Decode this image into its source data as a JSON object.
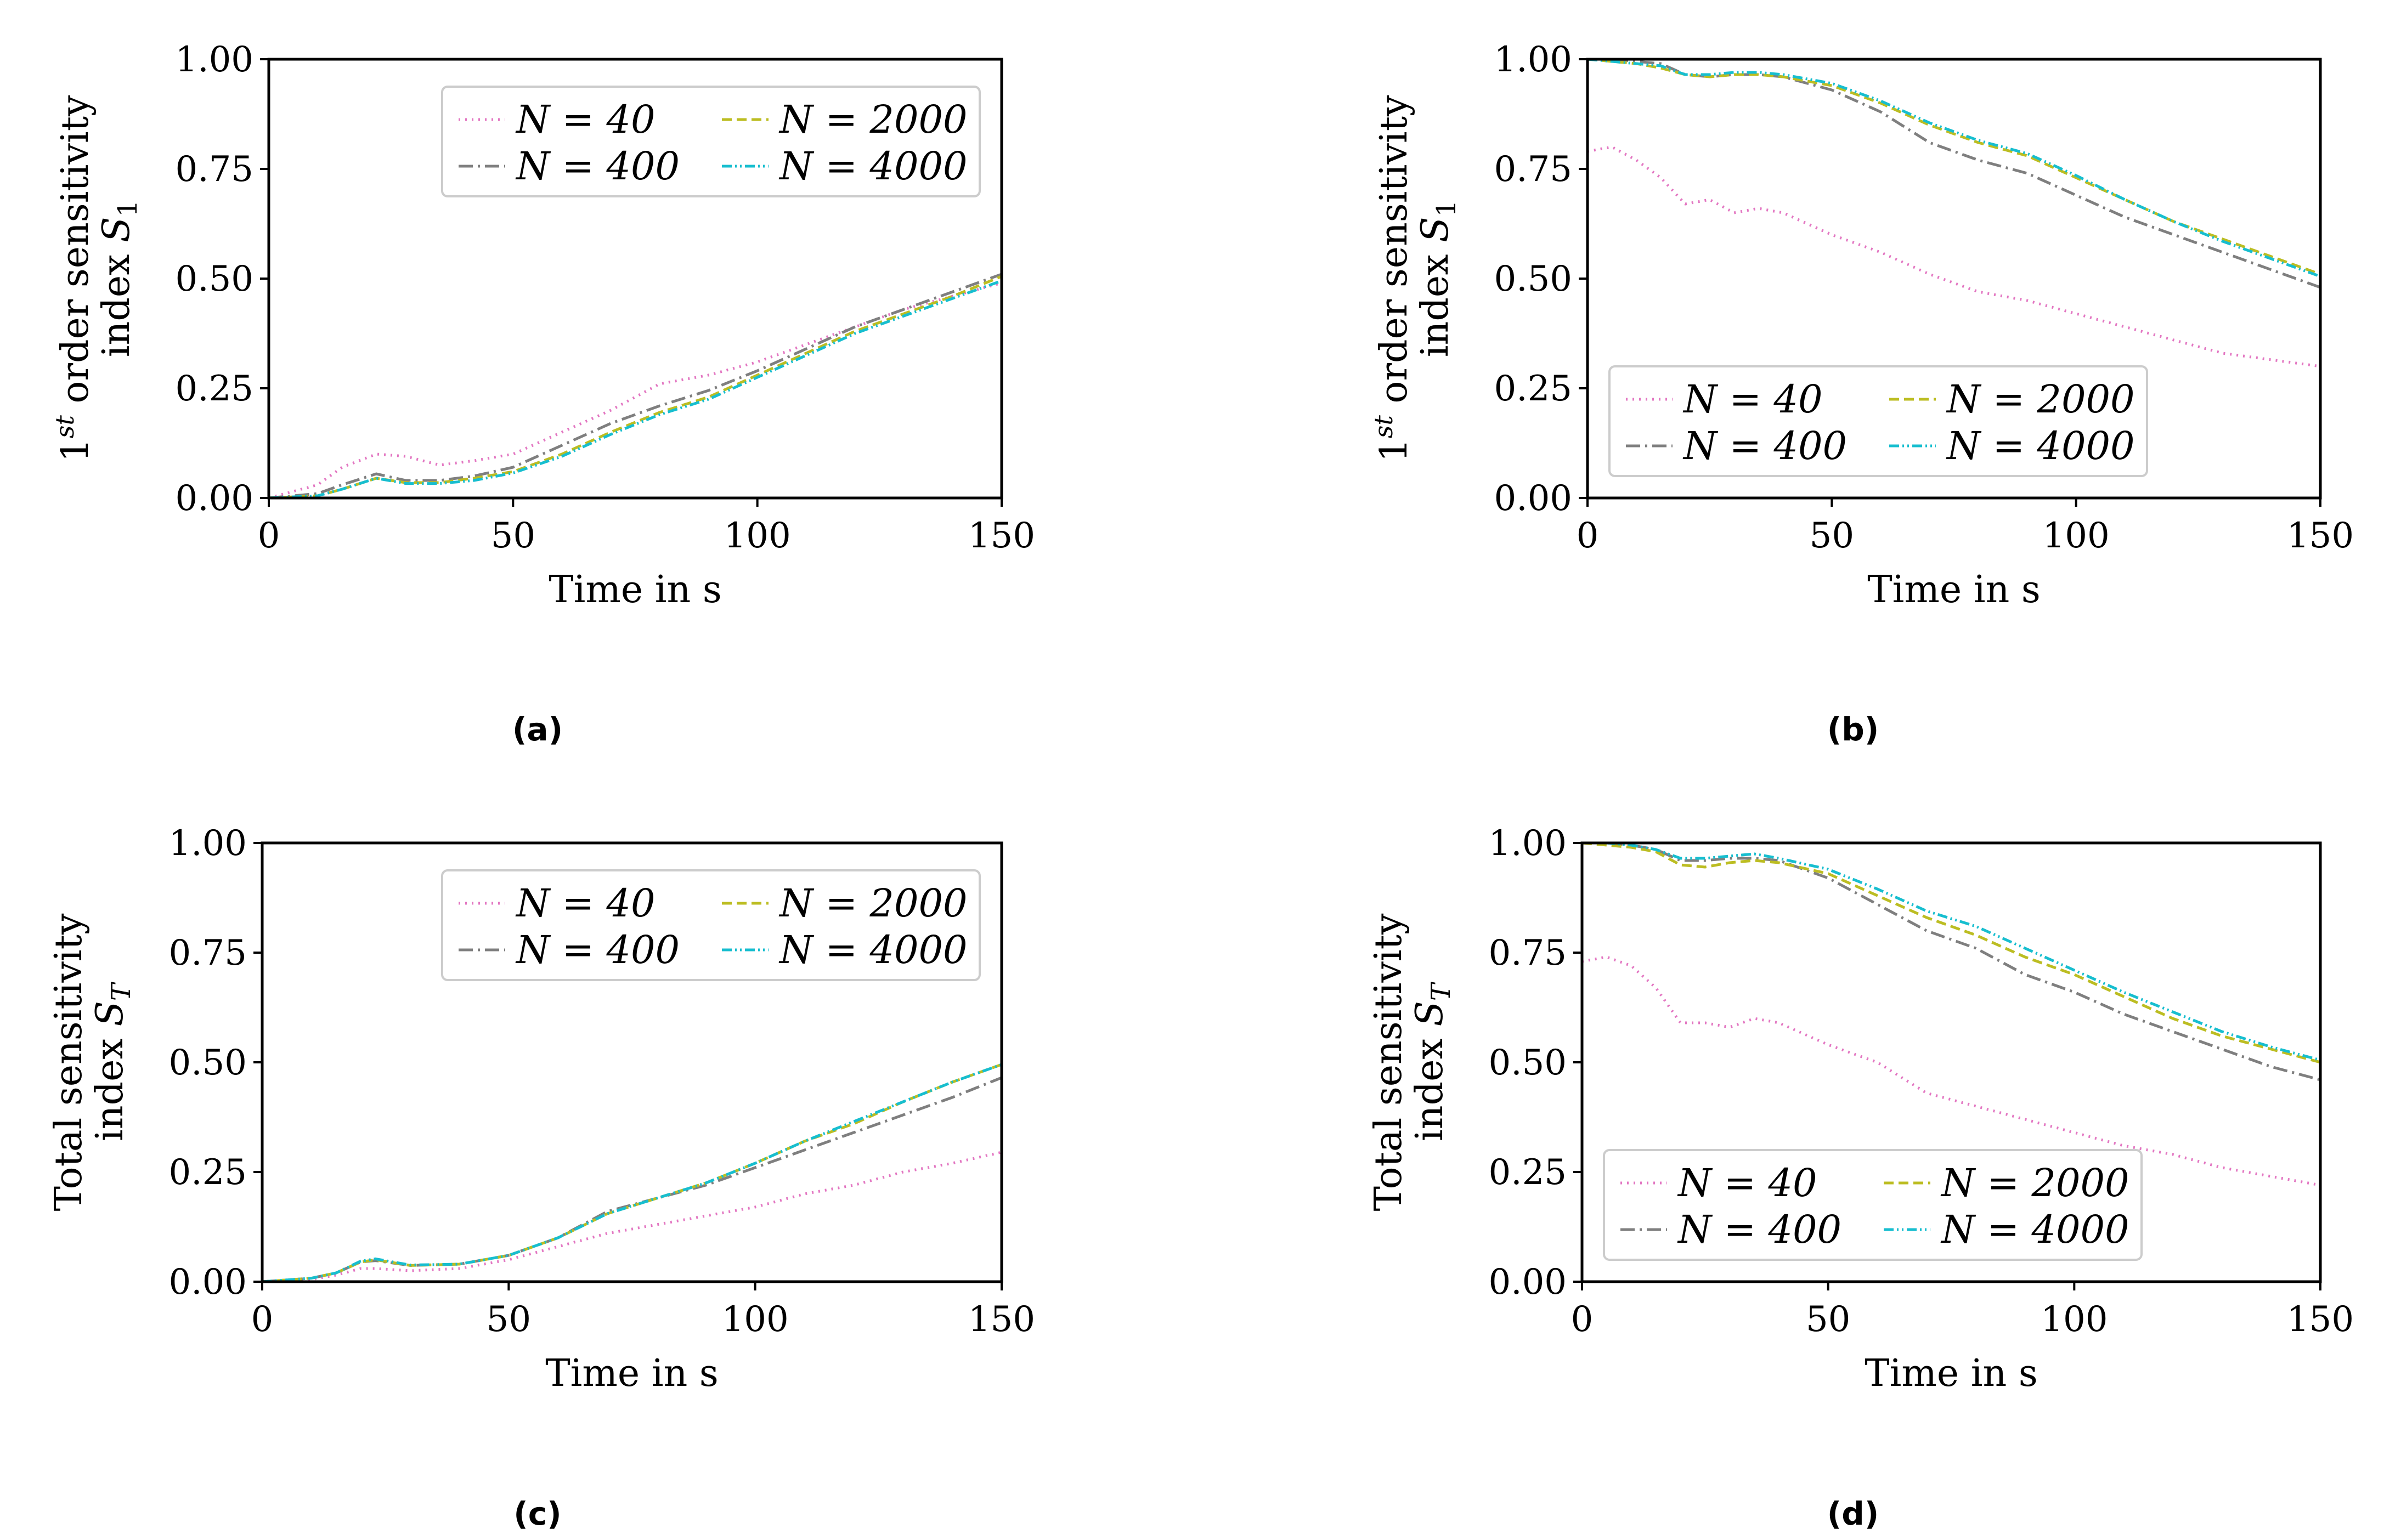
{
  "figure": {
    "panels": [
      "a",
      "b",
      "c",
      "d"
    ]
  },
  "chart_data": [
    {
      "id": "a",
      "caption": "(a)",
      "type": "line",
      "ylabel_line1": "1st order sensitivity",
      "ylabel_line2": "index S1",
      "xlabel": "Time in s",
      "xlim": [
        0,
        150
      ],
      "ylim": [
        0,
        1
      ],
      "xticks": [
        0,
        50,
        100,
        150
      ],
      "yticks": [
        0.0,
        0.25,
        0.5,
        0.75,
        1.0
      ],
      "xtick_labels": [
        "0",
        "50",
        "100",
        "150"
      ],
      "ytick_labels": [
        "0.00",
        "0.25",
        "0.50",
        "0.75",
        "1.00"
      ],
      "legend_position": "top-right",
      "legend": [
        "N = 40",
        "N = 400",
        "N = 2000",
        "N = 4000"
      ],
      "x": [
        0,
        10,
        15,
        22,
        28,
        35,
        42,
        50,
        60,
        70,
        80,
        90,
        100,
        110,
        120,
        130,
        140,
        150
      ],
      "series": [
        {
          "name": "N = 40",
          "color": "#e377c2",
          "dash": "3,9",
          "values": [
            0.0,
            0.03,
            0.07,
            0.1,
            0.095,
            0.075,
            0.085,
            0.1,
            0.15,
            0.2,
            0.26,
            0.28,
            0.31,
            0.35,
            0.39,
            0.43,
            0.46,
            0.49
          ]
        },
        {
          "name": "N = 400",
          "color": "#7f7f7f",
          "dash": "26,9,4,9",
          "values": [
            0.0,
            0.01,
            0.03,
            0.055,
            0.04,
            0.04,
            0.05,
            0.07,
            0.12,
            0.17,
            0.21,
            0.245,
            0.29,
            0.34,
            0.39,
            0.43,
            0.47,
            0.51
          ]
        },
        {
          "name": "N = 2000",
          "color": "#bcbd22",
          "dash": "18,9",
          "values": [
            0.0,
            0.005,
            0.02,
            0.045,
            0.035,
            0.035,
            0.045,
            0.06,
            0.1,
            0.15,
            0.195,
            0.23,
            0.28,
            0.33,
            0.38,
            0.42,
            0.46,
            0.505
          ]
        },
        {
          "name": "N = 4000",
          "color": "#17becf",
          "dash": "18,6,3,6,3,6",
          "values": [
            0.0,
            0.005,
            0.02,
            0.045,
            0.033,
            0.033,
            0.04,
            0.057,
            0.095,
            0.145,
            0.19,
            0.225,
            0.275,
            0.325,
            0.375,
            0.415,
            0.455,
            0.495
          ]
        }
      ]
    },
    {
      "id": "b",
      "caption": "(b)",
      "type": "line",
      "ylabel_line1": "1st order sensitivity",
      "ylabel_line2": "index S1",
      "xlabel": "Time in s",
      "xlim": [
        0,
        150
      ],
      "ylim": [
        0,
        1
      ],
      "xticks": [
        0,
        50,
        100,
        150
      ],
      "yticks": [
        0.0,
        0.25,
        0.5,
        0.75,
        1.0
      ],
      "xtick_labels": [
        "0",
        "50",
        "100",
        "150"
      ],
      "ytick_labels": [
        "0.00",
        "0.25",
        "0.50",
        "0.75",
        "1.00"
      ],
      "legend_position": "bottom-left",
      "legend": [
        "N = 40",
        "N = 400",
        "N = 2000",
        "N = 4000"
      ],
      "x": [
        0,
        5,
        10,
        15,
        20,
        25,
        30,
        35,
        40,
        50,
        60,
        70,
        80,
        90,
        100,
        110,
        120,
        130,
        140,
        150
      ],
      "series": [
        {
          "name": "N = 40",
          "color": "#e377c2",
          "dash": "3,9",
          "values": [
            0.79,
            0.8,
            0.77,
            0.73,
            0.67,
            0.68,
            0.65,
            0.66,
            0.65,
            0.6,
            0.56,
            0.51,
            0.47,
            0.45,
            0.42,
            0.39,
            0.36,
            0.33,
            0.315,
            0.3
          ]
        },
        {
          "name": "N = 400",
          "color": "#7f7f7f",
          "dash": "26,9,4,9",
          "values": [
            1.0,
            1.0,
            0.995,
            0.99,
            0.965,
            0.96,
            0.965,
            0.965,
            0.96,
            0.93,
            0.88,
            0.81,
            0.77,
            0.74,
            0.69,
            0.64,
            0.6,
            0.56,
            0.52,
            0.48
          ]
        },
        {
          "name": "N = 2000",
          "color": "#bcbd22",
          "dash": "18,9",
          "values": [
            1.0,
            0.995,
            0.99,
            0.98,
            0.965,
            0.96,
            0.965,
            0.965,
            0.96,
            0.94,
            0.9,
            0.85,
            0.81,
            0.78,
            0.73,
            0.68,
            0.63,
            0.59,
            0.55,
            0.51
          ]
        },
        {
          "name": "N = 4000",
          "color": "#17becf",
          "dash": "18,6,3,6,3,6",
          "values": [
            1.0,
            0.995,
            0.99,
            0.985,
            0.965,
            0.965,
            0.97,
            0.97,
            0.965,
            0.945,
            0.905,
            0.855,
            0.815,
            0.785,
            0.735,
            0.68,
            0.63,
            0.585,
            0.545,
            0.505
          ]
        }
      ]
    },
    {
      "id": "c",
      "caption": "(c)",
      "type": "line",
      "ylabel_line1": "Total sensitivity",
      "ylabel_line2": "index ST",
      "xlabel": "Time in s",
      "xlim": [
        0,
        150
      ],
      "ylim": [
        0,
        1
      ],
      "xticks": [
        0,
        50,
        100,
        150
      ],
      "yticks": [
        0.0,
        0.25,
        0.5,
        0.75,
        1.0
      ],
      "xtick_labels": [
        "0",
        "50",
        "100",
        "150"
      ],
      "ytick_labels": [
        "0.00",
        "0.25",
        "0.50",
        "0.75",
        "1.00"
      ],
      "legend_position": "top-right",
      "legend": [
        "N = 40",
        "N = 400",
        "N = 2000",
        "N = 4000"
      ],
      "x": [
        0,
        10,
        15,
        20,
        23,
        30,
        40,
        50,
        60,
        70,
        80,
        90,
        100,
        110,
        120,
        130,
        140,
        150
      ],
      "series": [
        {
          "name": "N = 40",
          "color": "#e377c2",
          "dash": "3,9",
          "values": [
            0.0,
            0.005,
            0.015,
            0.03,
            0.03,
            0.025,
            0.03,
            0.05,
            0.08,
            0.11,
            0.13,
            0.15,
            0.17,
            0.2,
            0.22,
            0.25,
            0.27,
            0.295
          ]
        },
        {
          "name": "N = 400",
          "color": "#7f7f7f",
          "dash": "26,9,4,9",
          "values": [
            0.0,
            0.008,
            0.02,
            0.045,
            0.048,
            0.037,
            0.04,
            0.06,
            0.1,
            0.16,
            0.19,
            0.22,
            0.26,
            0.3,
            0.34,
            0.38,
            0.42,
            0.465
          ]
        },
        {
          "name": "N = 2000",
          "color": "#bcbd22",
          "dash": "18,9",
          "values": [
            0.0,
            0.008,
            0.02,
            0.045,
            0.05,
            0.037,
            0.04,
            0.06,
            0.1,
            0.155,
            0.19,
            0.225,
            0.27,
            0.32,
            0.36,
            0.41,
            0.455,
            0.495
          ]
        },
        {
          "name": "N = 4000",
          "color": "#17becf",
          "dash": "18,6,3,6,3,6",
          "values": [
            0.0,
            0.008,
            0.02,
            0.047,
            0.052,
            0.038,
            0.04,
            0.06,
            0.1,
            0.155,
            0.19,
            0.225,
            0.27,
            0.32,
            0.365,
            0.41,
            0.455,
            0.495
          ]
        }
      ]
    },
    {
      "id": "d",
      "caption": "(d)",
      "type": "line",
      "ylabel_line1": "Total sensitivity",
      "ylabel_line2": "index ST",
      "xlabel": "Time in s",
      "xlim": [
        0,
        150
      ],
      "ylim": [
        0,
        1
      ],
      "xticks": [
        0,
        50,
        100,
        150
      ],
      "yticks": [
        0.0,
        0.25,
        0.5,
        0.75,
        1.0
      ],
      "xtick_labels": [
        "0",
        "50",
        "100",
        "150"
      ],
      "ytick_labels": [
        "0.00",
        "0.25",
        "0.50",
        "0.75",
        "1.00"
      ],
      "legend_position": "bottom-left",
      "legend": [
        "N = 40",
        "N = 400",
        "N = 2000",
        "N = 4000"
      ],
      "x": [
        0,
        5,
        10,
        15,
        20,
        25,
        30,
        35,
        40,
        50,
        60,
        70,
        80,
        90,
        100,
        110,
        120,
        130,
        140,
        150
      ],
      "series": [
        {
          "name": "N = 40",
          "color": "#e377c2",
          "dash": "3,9",
          "values": [
            0.73,
            0.74,
            0.72,
            0.67,
            0.59,
            0.59,
            0.58,
            0.6,
            0.59,
            0.54,
            0.5,
            0.43,
            0.4,
            0.37,
            0.34,
            0.31,
            0.29,
            0.26,
            0.24,
            0.22
          ]
        },
        {
          "name": "N = 400",
          "color": "#7f7f7f",
          "dash": "26,9,4,9",
          "values": [
            1.0,
            1.0,
            0.995,
            0.985,
            0.96,
            0.96,
            0.965,
            0.965,
            0.96,
            0.92,
            0.86,
            0.8,
            0.76,
            0.7,
            0.66,
            0.61,
            0.57,
            0.53,
            0.49,
            0.46
          ]
        },
        {
          "name": "N = 2000",
          "color": "#bcbd22",
          "dash": "18,9",
          "values": [
            1.0,
            0.995,
            0.99,
            0.98,
            0.95,
            0.945,
            0.955,
            0.96,
            0.955,
            0.93,
            0.88,
            0.83,
            0.79,
            0.74,
            0.7,
            0.65,
            0.6,
            0.56,
            0.53,
            0.5
          ]
        },
        {
          "name": "N = 4000",
          "color": "#17becf",
          "dash": "18,6,3,6,3,6",
          "values": [
            1.0,
            1.0,
            0.995,
            0.985,
            0.965,
            0.965,
            0.97,
            0.975,
            0.965,
            0.94,
            0.895,
            0.845,
            0.81,
            0.76,
            0.71,
            0.66,
            0.615,
            0.57,
            0.535,
            0.505
          ]
        }
      ]
    }
  ]
}
